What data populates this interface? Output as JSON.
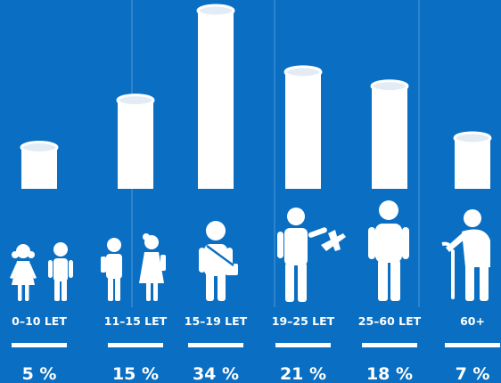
{
  "chart_data": {
    "type": "bar",
    "categories": [
      "0–10 LET",
      "11–15 LET",
      "15–19 LET",
      "19–25 LET",
      "25–60 LET",
      "60+"
    ],
    "values": [
      5,
      15,
      34,
      21,
      18,
      7
    ],
    "value_labels": [
      "5 %",
      "15 %",
      "34 %",
      "21 %",
      "18 %",
      "7 %"
    ],
    "ylim": [
      0,
      34
    ],
    "grid": false,
    "legend": "none",
    "icons": [
      "two-children-icon",
      "two-schoolkids-icon",
      "teen-with-bag-icon",
      "man-with-airplane-icon",
      "adult-man-icon",
      "elderly-with-cane-icon"
    ]
  },
  "colors": {
    "background": "#0a6fc2",
    "bar": "#ffffff",
    "bar_top_shade": "#e3ecf5",
    "divider": "#3a8bd0",
    "text": "#ffffff"
  }
}
